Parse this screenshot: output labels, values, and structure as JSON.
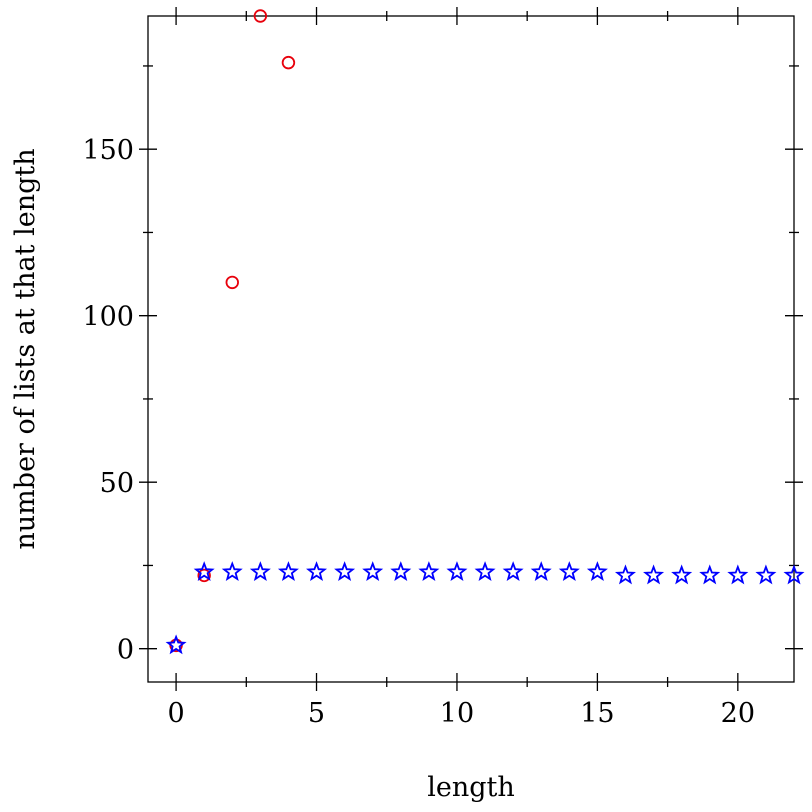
{
  "chart_data": {
    "type": "scatter",
    "title": "",
    "xlabel": "length",
    "ylabel": "number of lists at that length",
    "xlim": [
      -1,
      22
    ],
    "ylim": [
      -10,
      190
    ],
    "x_ticks": [
      0,
      5,
      10,
      15,
      20
    ],
    "y_ticks": [
      0,
      50,
      100,
      150
    ],
    "grid": false,
    "series": [
      {
        "marker": "circle",
        "color": "#e8000b",
        "points": [
          [
            0,
            1
          ],
          [
            1,
            22
          ],
          [
            2,
            110
          ],
          [
            3,
            190
          ],
          [
            4,
            176
          ]
        ]
      },
      {
        "marker": "star",
        "color": "#0000ff",
        "points": [
          [
            0,
            1
          ],
          [
            1,
            23
          ],
          [
            2,
            23
          ],
          [
            3,
            23
          ],
          [
            4,
            23
          ],
          [
            5,
            23
          ],
          [
            6,
            23
          ],
          [
            7,
            23
          ],
          [
            8,
            23
          ],
          [
            9,
            23
          ],
          [
            10,
            23
          ],
          [
            11,
            23
          ],
          [
            12,
            23
          ],
          [
            13,
            23
          ],
          [
            14,
            23
          ],
          [
            15,
            23
          ],
          [
            16,
            22
          ],
          [
            17,
            22
          ],
          [
            18,
            22
          ],
          [
            19,
            22
          ],
          [
            20,
            22
          ],
          [
            21,
            22
          ],
          [
            22,
            22
          ]
        ]
      }
    ]
  }
}
